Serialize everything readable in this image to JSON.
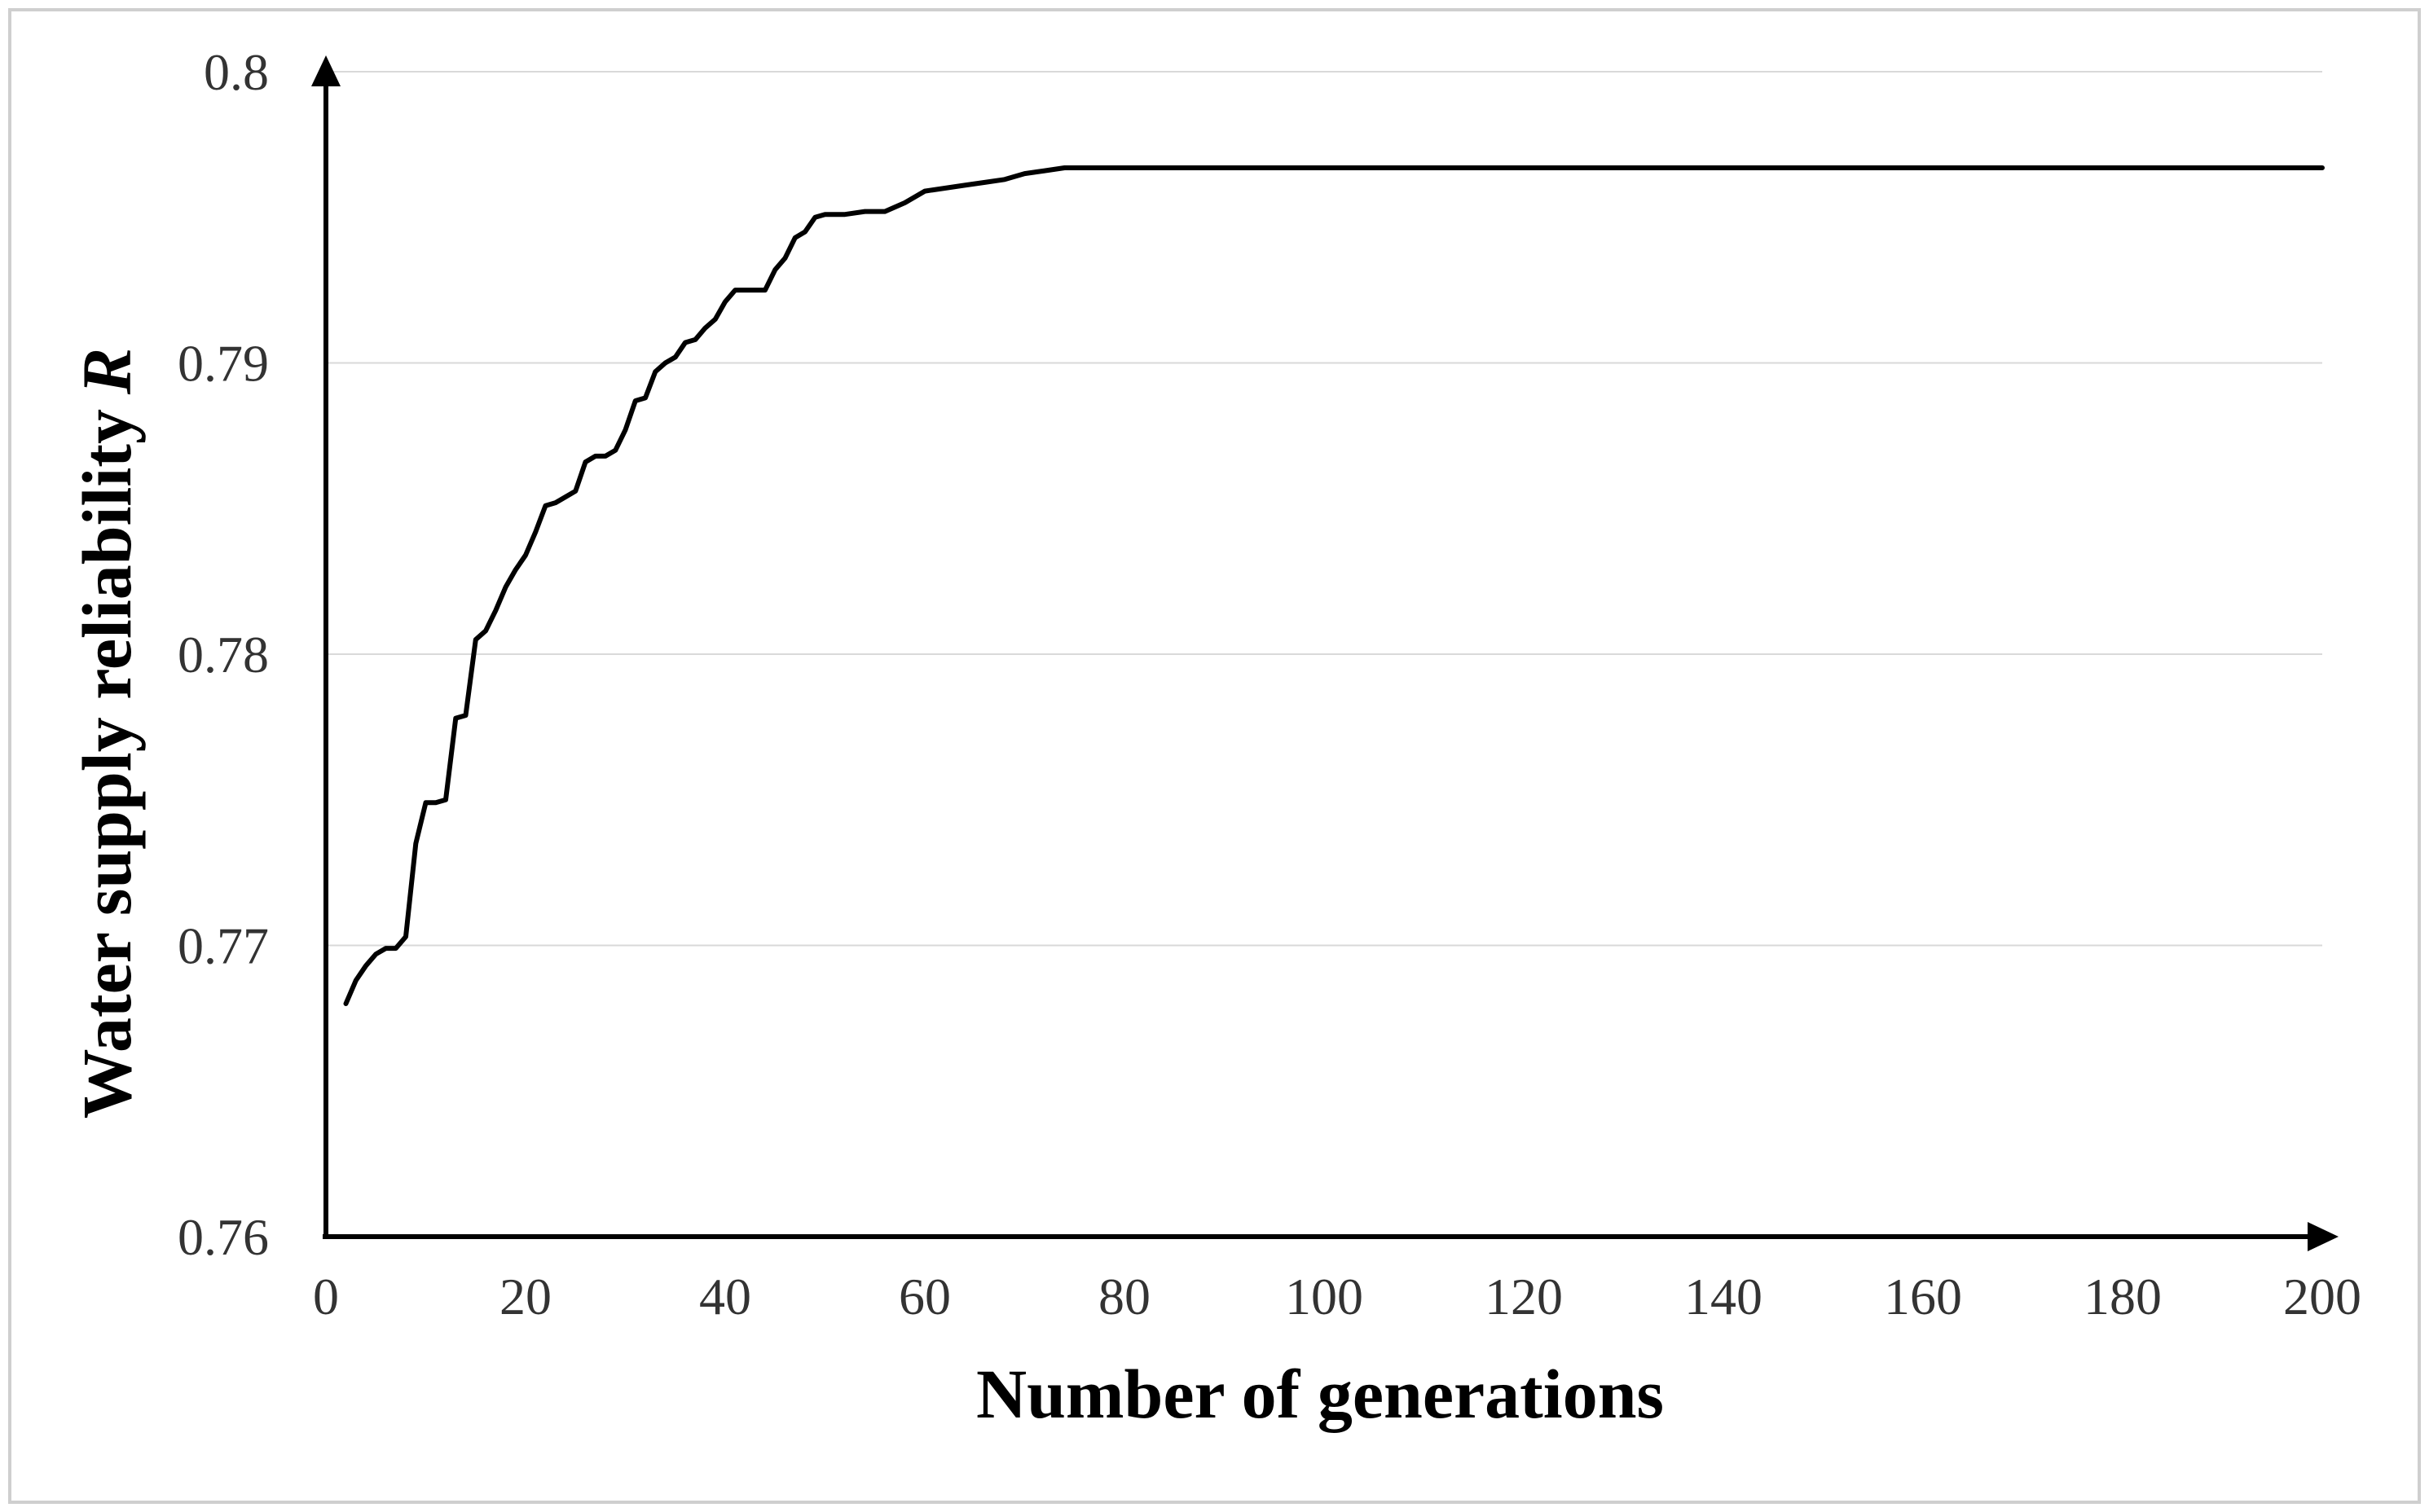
{
  "chart_data": {
    "type": "line",
    "xlabel": "Number of generations",
    "ylabel": "Water supply reliability",
    "ylabel_symbol": "R",
    "xlim": [
      0,
      200
    ],
    "ylim": [
      0.76,
      0.8
    ],
    "x_ticks": [
      "0",
      "20",
      "40",
      "60",
      "80",
      "100",
      "120",
      "140",
      "160",
      "180",
      "200"
    ],
    "y_ticks": [
      "0.76",
      "0.77",
      "0.78",
      "0.79",
      "0.8"
    ],
    "grid": true,
    "line_color": "#000000",
    "series": [
      {
        "x": [
          2,
          3,
          4,
          5,
          6,
          7,
          8,
          9,
          10,
          11,
          12,
          13,
          14,
          15,
          16,
          17,
          18,
          19,
          20,
          21,
          22,
          23,
          24,
          25,
          26,
          27,
          28,
          29,
          30,
          31,
          32,
          33,
          34,
          35,
          36,
          37,
          38,
          39,
          40,
          41,
          42,
          43,
          44,
          45,
          46,
          47,
          48,
          49,
          50,
          52,
          54,
          56,
          58,
          60,
          62,
          64,
          66,
          68,
          70,
          72,
          74,
          80,
          100,
          120,
          140,
          160,
          180,
          200
        ],
        "values": [
          0.768,
          0.7688,
          0.7693,
          0.7697,
          0.7699,
          0.7699,
          0.7703,
          0.7735,
          0.7749,
          0.7749,
          0.775,
          0.7778,
          0.7779,
          0.7805,
          0.7808,
          0.7815,
          0.7823,
          0.7829,
          0.7834,
          0.7842,
          0.7851,
          0.7852,
          0.7854,
          0.7856,
          0.7866,
          0.7868,
          0.7868,
          0.787,
          0.7877,
          0.7887,
          0.7888,
          0.7897,
          0.79,
          0.7902,
          0.7907,
          0.7908,
          0.7912,
          0.7915,
          0.7921,
          0.7925,
          0.7925,
          0.7925,
          0.7925,
          0.7932,
          0.7936,
          0.7943,
          0.7945,
          0.795,
          0.7951,
          0.7951,
          0.7952,
          0.7952,
          0.7955,
          0.7959,
          0.796,
          0.7961,
          0.7962,
          0.7963,
          0.7965,
          0.7966,
          0.7967,
          0.7967,
          0.7967,
          0.7967,
          0.7967,
          0.7967,
          0.7967,
          0.7967
        ]
      }
    ]
  }
}
